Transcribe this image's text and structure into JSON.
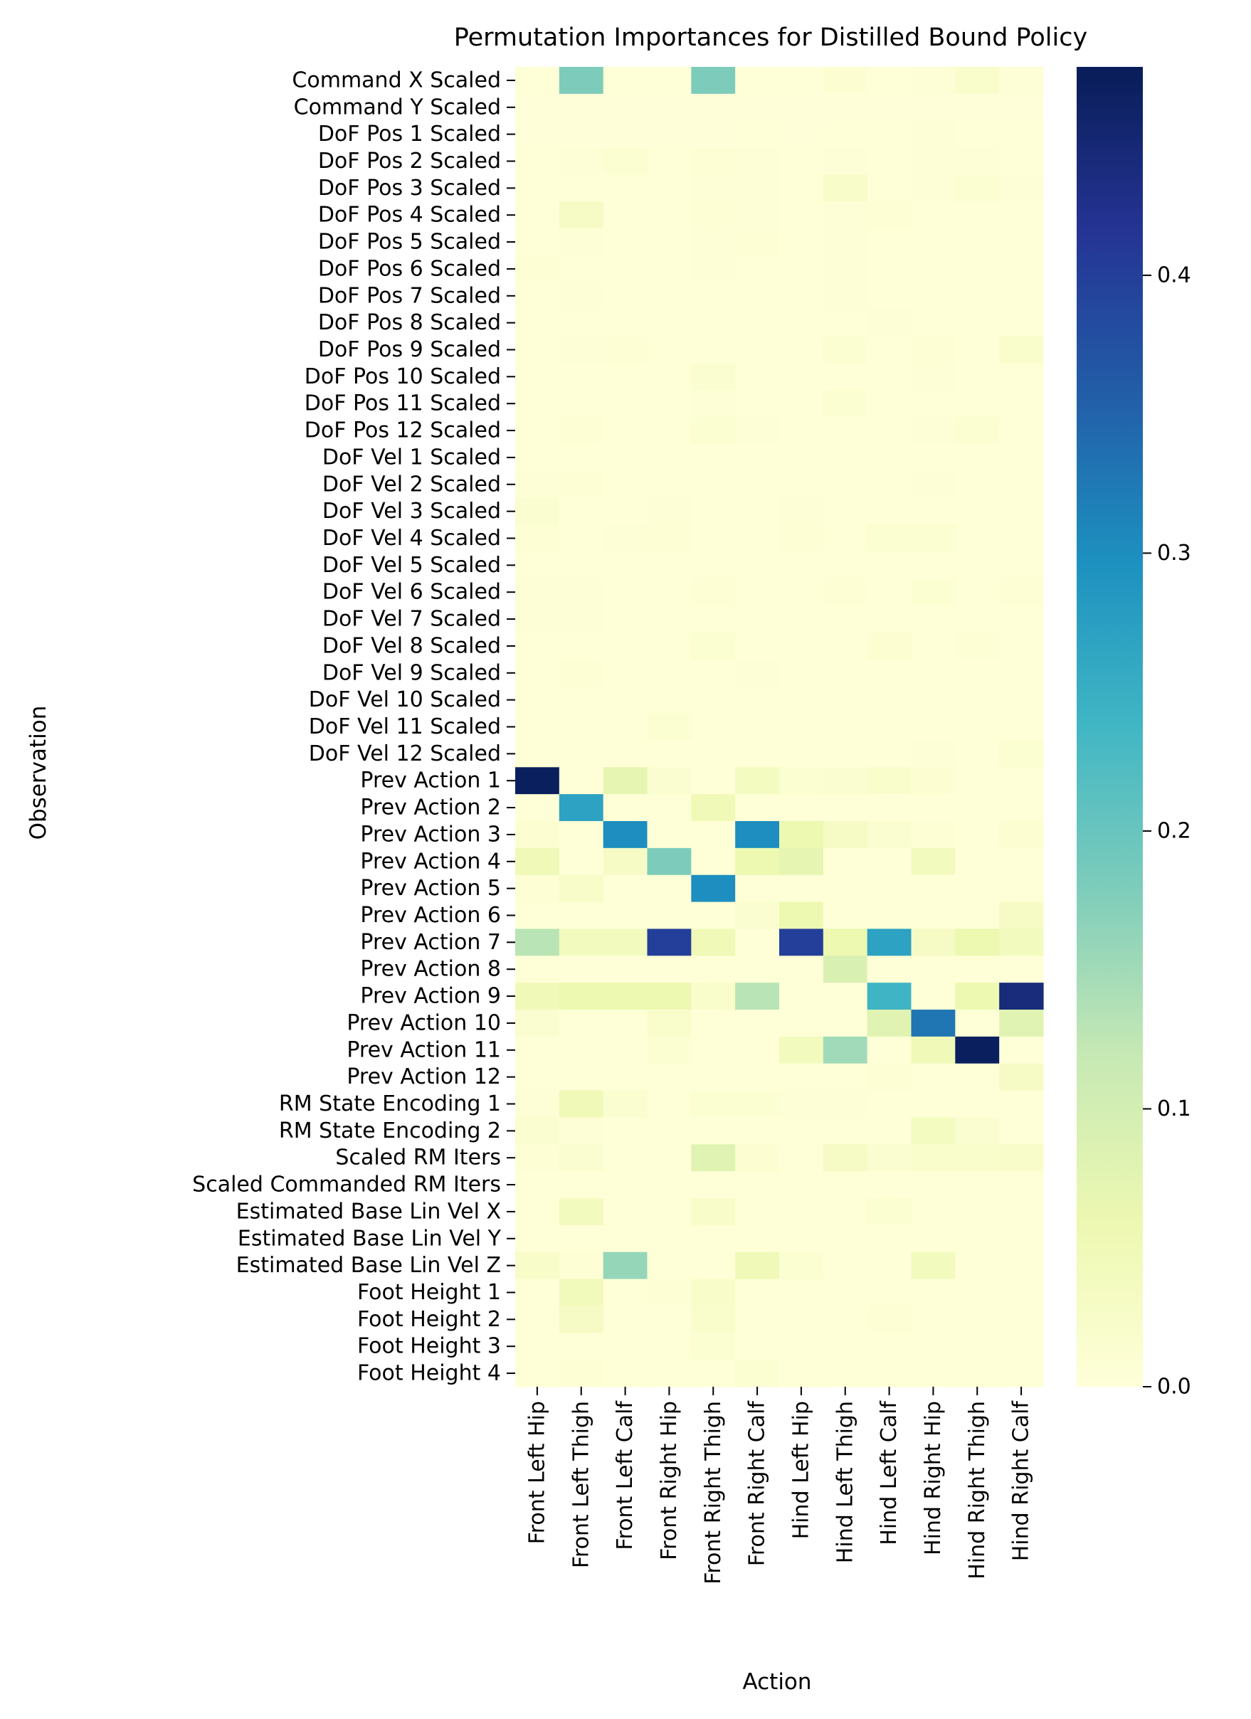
{
  "chart_data": {
    "type": "heatmap",
    "title": "Permutation Importances for Distilled Bound Policy",
    "xlabel": "Action",
    "ylabel": "Observation",
    "x_labels": [
      "Front Left Hip",
      "Front Left Thigh",
      "Front Left Calf",
      "Front Right Hip",
      "Front Right Thigh",
      "Front Right Calf",
      "Hind Left Hip",
      "Hind Left Thigh",
      "Hind Left Calf",
      "Hind Right Hip",
      "Hind Right Thigh",
      "Hind Right Calf"
    ],
    "y_labels": [
      "Command X Scaled",
      "Command Y Scaled",
      "DoF Pos 1 Scaled",
      "DoF Pos 2 Scaled",
      "DoF Pos 3 Scaled",
      "DoF Pos 4 Scaled",
      "DoF Pos 5 Scaled",
      "DoF Pos 6 Scaled",
      "DoF Pos 7 Scaled",
      "DoF Pos 8 Scaled",
      "DoF Pos 9 Scaled",
      "DoF Pos 10 Scaled",
      "DoF Pos 11 Scaled",
      "DoF Pos 12 Scaled",
      "DoF Vel 1 Scaled",
      "DoF Vel 2 Scaled",
      "DoF Vel 3 Scaled",
      "DoF Vel 4 Scaled",
      "DoF Vel 5 Scaled",
      "DoF Vel 6 Scaled",
      "DoF Vel 7 Scaled",
      "DoF Vel 8 Scaled",
      "DoF Vel 9 Scaled",
      "DoF Vel 10 Scaled",
      "DoF Vel 11 Scaled",
      "DoF Vel 12 Scaled",
      "Prev Action 1",
      "Prev Action 2",
      "Prev Action 3",
      "Prev Action 4",
      "Prev Action 5",
      "Prev Action 6",
      "Prev Action 7",
      "Prev Action 8",
      "Prev Action 9",
      "Prev Action 10",
      "Prev Action 11",
      "Prev Action 12",
      "RM State Encoding 1",
      "RM State Encoding 2",
      "Scaled RM Iters",
      "Scaled Commanded RM Iters",
      "Estimated Base Lin Vel X",
      "Estimated Base Lin Vel Y",
      "Estimated Base Lin Vel Z",
      "Foot Height 1",
      "Foot Height 2",
      "Foot Height 3",
      "Foot Height 4"
    ],
    "values": [
      [
        0.003,
        0.18,
        0.003,
        0.003,
        0.18,
        0.003,
        0.003,
        0.01,
        0.003,
        0.006,
        0.02,
        0.006
      ],
      [
        0.002,
        0.002,
        0.002,
        0.002,
        0.002,
        0.002,
        0.002,
        0.002,
        0.002,
        0.002,
        0.002,
        0.002
      ],
      [
        0.002,
        0.002,
        0.002,
        0.002,
        0.002,
        0.004,
        0.002,
        0.004,
        0.004,
        0.006,
        0.004,
        0.004
      ],
      [
        0.003,
        0.006,
        0.012,
        0.004,
        0.008,
        0.006,
        0.004,
        0.006,
        0.004,
        0.006,
        0.005,
        0.004
      ],
      [
        0.004,
        0.004,
        0.003,
        0.003,
        0.006,
        0.005,
        0.004,
        0.025,
        0.004,
        0.006,
        0.012,
        0.005
      ],
      [
        0.004,
        0.03,
        0.004,
        0.004,
        0.008,
        0.005,
        0.004,
        0.006,
        0.008,
        0.004,
        0.004,
        0.004
      ],
      [
        0.004,
        0.005,
        0.004,
        0.004,
        0.005,
        0.008,
        0.004,
        0.006,
        0.004,
        0.004,
        0.004,
        0.004
      ],
      [
        0.008,
        0.004,
        0.004,
        0.004,
        0.006,
        0.004,
        0.004,
        0.006,
        0.004,
        0.004,
        0.004,
        0.004
      ],
      [
        0.004,
        0.006,
        0.004,
        0.004,
        0.004,
        0.004,
        0.004,
        0.006,
        0.004,
        0.004,
        0.004,
        0.004
      ],
      [
        0.004,
        0.004,
        0.004,
        0.004,
        0.004,
        0.004,
        0.004,
        0.004,
        0.006,
        0.004,
        0.004,
        0.004
      ],
      [
        0.004,
        0.006,
        0.008,
        0.004,
        0.004,
        0.004,
        0.004,
        0.012,
        0.004,
        0.008,
        0.004,
        0.02
      ],
      [
        0.004,
        0.004,
        0.004,
        0.004,
        0.015,
        0.004,
        0.004,
        0.004,
        0.004,
        0.006,
        0.004,
        0.004
      ],
      [
        0.004,
        0.004,
        0.004,
        0.004,
        0.006,
        0.004,
        0.004,
        0.012,
        0.004,
        0.004,
        0.004,
        0.004
      ],
      [
        0.004,
        0.008,
        0.004,
        0.004,
        0.012,
        0.006,
        0.004,
        0.004,
        0.004,
        0.006,
        0.012,
        0.004
      ],
      [
        0.004,
        0.004,
        0.004,
        0.004,
        0.004,
        0.004,
        0.004,
        0.004,
        0.004,
        0.004,
        0.004,
        0.004
      ],
      [
        0.006,
        0.008,
        0.004,
        0.004,
        0.004,
        0.004,
        0.004,
        0.004,
        0.004,
        0.006,
        0.004,
        0.004
      ],
      [
        0.015,
        0.004,
        0.004,
        0.006,
        0.004,
        0.004,
        0.006,
        0.004,
        0.004,
        0.004,
        0.004,
        0.004
      ],
      [
        0.008,
        0.004,
        0.006,
        0.008,
        0.004,
        0.004,
        0.008,
        0.004,
        0.012,
        0.012,
        0.004,
        0.004
      ],
      [
        0.004,
        0.004,
        0.004,
        0.004,
        0.004,
        0.004,
        0.004,
        0.004,
        0.004,
        0.004,
        0.004,
        0.004
      ],
      [
        0.006,
        0.006,
        0.004,
        0.004,
        0.008,
        0.004,
        0.004,
        0.008,
        0.004,
        0.012,
        0.004,
        0.008
      ],
      [
        0.006,
        0.006,
        0.004,
        0.004,
        0.004,
        0.004,
        0.004,
        0.004,
        0.004,
        0.004,
        0.004,
        0.004
      ],
      [
        0.004,
        0.004,
        0.004,
        0.004,
        0.012,
        0.004,
        0.004,
        0.004,
        0.01,
        0.004,
        0.008,
        0.004
      ],
      [
        0.004,
        0.008,
        0.004,
        0.004,
        0.004,
        0.006,
        0.004,
        0.004,
        0.004,
        0.004,
        0.004,
        0.004
      ],
      [
        0.004,
        0.004,
        0.004,
        0.004,
        0.004,
        0.004,
        0.004,
        0.004,
        0.004,
        0.004,
        0.004,
        0.004
      ],
      [
        0.004,
        0.004,
        0.004,
        0.012,
        0.004,
        0.004,
        0.004,
        0.004,
        0.004,
        0.004,
        0.004,
        0.004
      ],
      [
        0.004,
        0.004,
        0.004,
        0.004,
        0.004,
        0.004,
        0.004,
        0.004,
        0.004,
        0.006,
        0.004,
        0.012
      ],
      [
        0.47,
        0.004,
        0.07,
        0.015,
        0.004,
        0.035,
        0.012,
        0.015,
        0.02,
        0.01,
        0.004,
        0.004
      ],
      [
        0.004,
        0.27,
        0.004,
        0.004,
        0.05,
        0.004,
        0.004,
        0.004,
        0.004,
        0.004,
        0.004,
        0.004
      ],
      [
        0.01,
        0.004,
        0.3,
        0.004,
        0.004,
        0.3,
        0.06,
        0.03,
        0.015,
        0.008,
        0.004,
        0.01
      ],
      [
        0.05,
        0.004,
        0.03,
        0.18,
        0.004,
        0.06,
        0.07,
        0.004,
        0.004,
        0.04,
        0.004,
        0.004
      ],
      [
        0.008,
        0.025,
        0.004,
        0.004,
        0.3,
        0.004,
        0.004,
        0.004,
        0.004,
        0.004,
        0.004,
        0.004
      ],
      [
        0.004,
        0.004,
        0.004,
        0.004,
        0.004,
        0.015,
        0.06,
        0.004,
        0.004,
        0.004,
        0.004,
        0.03
      ],
      [
        0.13,
        0.04,
        0.04,
        0.4,
        0.05,
        0.004,
        0.4,
        0.06,
        0.27,
        0.03,
        0.06,
        0.04
      ],
      [
        0.004,
        0.004,
        0.004,
        0.004,
        0.004,
        0.004,
        0.004,
        0.09,
        0.004,
        0.004,
        0.004,
        0.004
      ],
      [
        0.05,
        0.06,
        0.06,
        0.06,
        0.02,
        0.13,
        0.004,
        0.004,
        0.24,
        0.004,
        0.06,
        0.44
      ],
      [
        0.015,
        0.004,
        0.004,
        0.02,
        0.004,
        0.004,
        0.004,
        0.004,
        0.08,
        0.33,
        0.004,
        0.08
      ],
      [
        0.004,
        0.004,
        0.004,
        0.012,
        0.004,
        0.004,
        0.04,
        0.15,
        0.004,
        0.05,
        0.47,
        0.004
      ],
      [
        0.004,
        0.004,
        0.004,
        0.004,
        0.004,
        0.004,
        0.004,
        0.004,
        0.008,
        0.004,
        0.004,
        0.03
      ],
      [
        0.006,
        0.05,
        0.015,
        0.004,
        0.012,
        0.012,
        0.006,
        0.006,
        0.004,
        0.004,
        0.004,
        0.004
      ],
      [
        0.015,
        0.006,
        0.004,
        0.004,
        0.004,
        0.004,
        0.004,
        0.004,
        0.004,
        0.035,
        0.015,
        0.004
      ],
      [
        0.008,
        0.015,
        0.004,
        0.004,
        0.08,
        0.01,
        0.004,
        0.03,
        0.015,
        0.02,
        0.02,
        0.025
      ],
      [
        0.004,
        0.004,
        0.004,
        0.004,
        0.004,
        0.004,
        0.004,
        0.004,
        0.004,
        0.004,
        0.004,
        0.004
      ],
      [
        0.004,
        0.04,
        0.004,
        0.004,
        0.025,
        0.004,
        0.004,
        0.004,
        0.012,
        0.004,
        0.004,
        0.004
      ],
      [
        0.004,
        0.004,
        0.004,
        0.004,
        0.004,
        0.004,
        0.004,
        0.004,
        0.004,
        0.004,
        0.004,
        0.004
      ],
      [
        0.025,
        0.008,
        0.16,
        0.004,
        0.004,
        0.05,
        0.012,
        0.004,
        0.004,
        0.04,
        0.004,
        0.004
      ],
      [
        0.004,
        0.045,
        0.004,
        0.008,
        0.025,
        0.004,
        0.004,
        0.004,
        0.004,
        0.004,
        0.004,
        0.004
      ],
      [
        0.004,
        0.03,
        0.004,
        0.004,
        0.02,
        0.004,
        0.004,
        0.004,
        0.008,
        0.004,
        0.004,
        0.004
      ],
      [
        0.004,
        0.004,
        0.004,
        0.004,
        0.012,
        0.004,
        0.004,
        0.004,
        0.004,
        0.004,
        0.004,
        0.004
      ],
      [
        0.004,
        0.008,
        0.004,
        0.004,
        0.004,
        0.012,
        0.004,
        0.004,
        0.004,
        0.004,
        0.004,
        0.004
      ]
    ],
    "colorbar": {
      "colormap": "YlGnBu",
      "range": [
        0,
        0.475
      ],
      "ticks": [
        0.0,
        0.1,
        0.2,
        0.3,
        0.4
      ],
      "tick_labels": [
        "0.0",
        "0.1",
        "0.2",
        "0.3",
        "0.4"
      ]
    },
    "colormap_stops": [
      "#ffffd9",
      "#edf8b1",
      "#c7e9b4",
      "#7fcdbb",
      "#41b6c4",
      "#1d91c0",
      "#225ea8",
      "#253494",
      "#081d58"
    ]
  }
}
